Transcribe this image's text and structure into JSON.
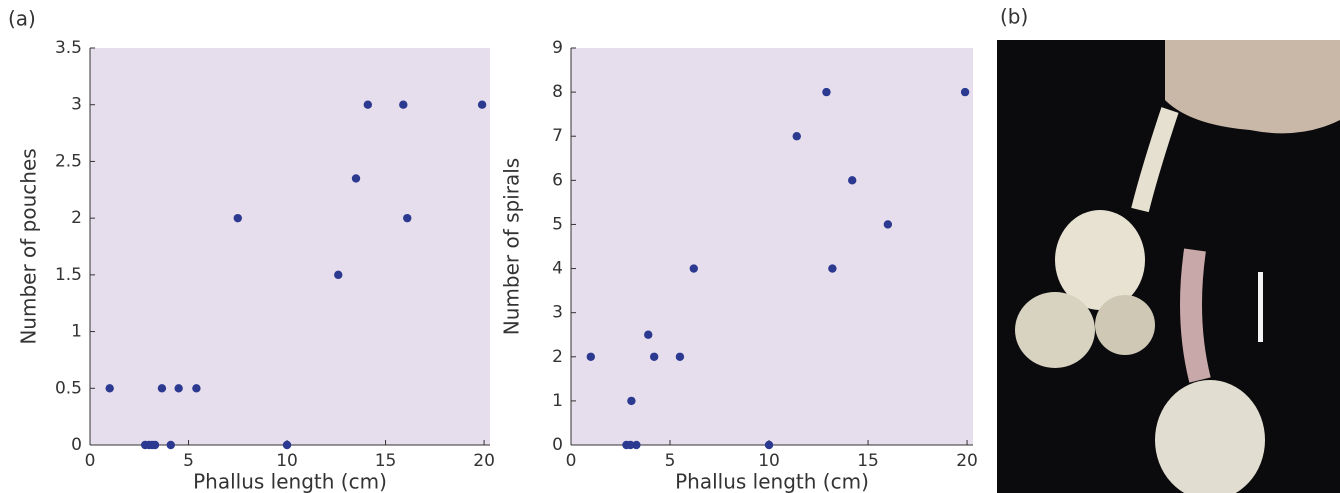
{
  "panel_labels": [
    "(a)",
    "(b)"
  ],
  "chart_data": [
    {
      "type": "scatter",
      "xlabel": "Phallus length (cm)",
      "ylabel": "Number of pouches",
      "x": [
        1.0,
        2.8,
        3.0,
        3.15,
        3.3,
        3.65,
        4.1,
        4.5,
        5.4,
        7.5,
        10.0,
        12.6,
        13.5,
        14.1,
        15.9,
        16.1,
        19.9
      ],
      "values": [
        0.5,
        0,
        0,
        0,
        0,
        0.5,
        0,
        0.5,
        0.5,
        2,
        0,
        1.5,
        2.35,
        3,
        3,
        2,
        3
      ],
      "color": "#2b3990",
      "background": "#e7deed",
      "xlim": [
        0,
        20.3
      ],
      "ylim": [
        0,
        3.5
      ],
      "xticks": [
        0,
        5,
        10,
        15,
        20
      ],
      "yticks": [
        0,
        0.5,
        1,
        1.5,
        2,
        2.5,
        3,
        3.5
      ]
    },
    {
      "type": "scatter",
      "xlabel": "Phallus length (cm)",
      "ylabel": "Number of spirals",
      "x": [
        1.0,
        2.8,
        3.0,
        3.05,
        3.3,
        3.9,
        4.2,
        5.5,
        6.2,
        10.0,
        11.4,
        12.9,
        13.2,
        14.2,
        16.0,
        19.9
      ],
      "values": [
        2,
        0,
        0,
        1,
        0,
        2.5,
        2,
        2,
        4,
        0,
        7,
        8,
        4,
        6,
        5,
        8
      ],
      "color": "#2b3990",
      "background": "#e7deed",
      "xlim": [
        0,
        20.3
      ],
      "ylim": [
        0,
        9
      ],
      "xticks": [
        0,
        5,
        10,
        15,
        20
      ],
      "yticks": [
        0,
        1,
        2,
        3,
        4,
        5,
        6,
        7,
        8,
        9
      ]
    }
  ]
}
